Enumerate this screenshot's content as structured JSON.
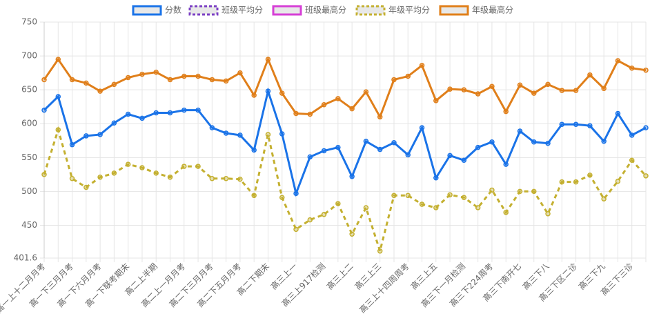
{
  "chart_data": {
    "type": "line",
    "categories": [
      "高一上十二月月考",
      null,
      "高一下三月月考",
      null,
      "高一下六月月考",
      null,
      "高一下联考期末",
      null,
      "高二上半期",
      null,
      "高二上一月月考",
      null,
      "高二下三月月考",
      null,
      "高二下五月月考",
      null,
      "高二下期末",
      null,
      "高三上一",
      null,
      "高三上917检测",
      null,
      "高三上二",
      null,
      "高三上三",
      null,
      "高三上十四周周考",
      null,
      "高三上五",
      null,
      "高三下一月检测",
      null,
      "高三下224周考",
      null,
      "高三下南开七",
      null,
      "高三下八",
      null,
      "高三下区二诊",
      null,
      "高三下九",
      null,
      "高三下三诊",
      null
    ],
    "series": [
      {
        "name": "分数",
        "color": "#1a73e8",
        "dashed": false,
        "values": [
          620,
          640,
          569,
          582,
          584,
          601,
          614,
          608,
          616,
          616,
          620,
          620,
          594,
          586,
          583,
          561,
          648,
          585,
          497,
          551,
          560,
          565,
          522,
          574,
          562,
          572,
          554,
          594,
          520,
          553,
          546,
          565,
          573,
          540,
          589,
          573,
          571,
          599,
          599,
          597,
          574,
          615,
          583,
          594
        ]
      },
      {
        "name": "班级平均分",
        "color": "#7b3fc4",
        "dashed": true,
        "values": [
          null,
          null,
          null,
          null,
          null,
          null,
          null,
          null,
          null,
          null,
          null,
          null,
          null,
          null,
          null,
          null,
          null,
          null,
          null,
          null,
          null,
          null,
          null,
          null,
          null,
          null,
          null,
          null,
          null,
          null,
          null,
          null,
          null,
          null,
          null,
          null,
          null,
          null,
          null,
          null,
          null,
          null,
          null,
          null
        ]
      },
      {
        "name": "班级最高分",
        "color": "#d63fd6",
        "dashed": false,
        "values": [
          null,
          null,
          null,
          null,
          null,
          null,
          null,
          null,
          null,
          null,
          null,
          null,
          null,
          null,
          null,
          null,
          null,
          null,
          null,
          null,
          null,
          null,
          null,
          null,
          null,
          null,
          null,
          null,
          null,
          null,
          null,
          null,
          null,
          null,
          null,
          null,
          null,
          null,
          null,
          null,
          null,
          null,
          null,
          null
        ]
      },
      {
        "name": "年级平均分",
        "color": "#c4b030",
        "dashed": true,
        "values": [
          525,
          591,
          519,
          506,
          521,
          527,
          540,
          535,
          527,
          521,
          537,
          537,
          519,
          519,
          518,
          494,
          584,
          491,
          444,
          458,
          466,
          482,
          437,
          476,
          412,
          494,
          494,
          481,
          476,
          495,
          491,
          476,
          502,
          469,
          500,
          500,
          467,
          514,
          514,
          524,
          489,
          515,
          546,
          523
        ]
      },
      {
        "name": "年级最高分",
        "color": "#e07f1a",
        "dashed": false,
        "values": [
          665,
          695,
          665,
          660,
          648,
          658,
          668,
          673,
          676,
          665,
          670,
          670,
          665,
          663,
          675,
          642,
          695,
          645,
          615,
          614,
          628,
          637,
          622,
          647,
          610,
          665,
          670,
          686,
          634,
          651,
          650,
          644,
          655,
          618,
          657,
          645,
          658,
          649,
          649,
          672,
          652,
          693,
          682,
          679
        ]
      }
    ],
    "ylim": [
      401.6,
      750
    ],
    "yticks": [
      401.6,
      450,
      500,
      550,
      600,
      650,
      700,
      750
    ],
    "grid": true,
    "legend": "top"
  }
}
